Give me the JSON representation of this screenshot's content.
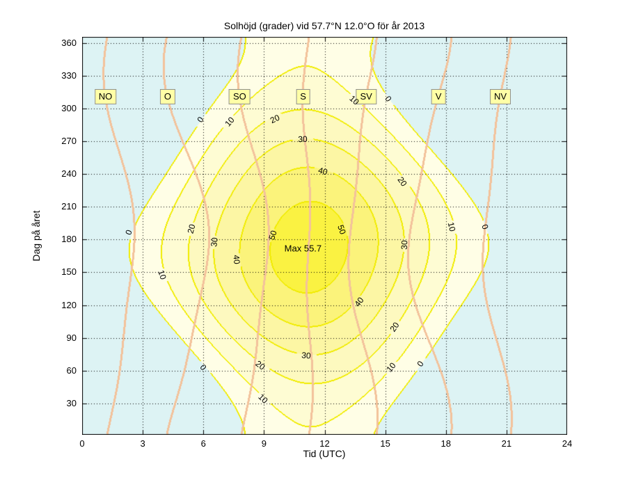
{
  "chart_data": {
    "type": "contour",
    "title": "Solhöjd (grader) vid 57.7°N 12.0°O för år 2013",
    "xlabel": "Tid (UTC)",
    "ylabel": "Dag på året",
    "xlim": [
      0,
      24
    ],
    "ylim": [
      1,
      366
    ],
    "x_ticks": [
      0,
      3,
      6,
      9,
      12,
      15,
      18,
      21,
      24
    ],
    "y_ticks": [
      30,
      60,
      90,
      120,
      150,
      180,
      210,
      240,
      270,
      300,
      330,
      360
    ],
    "grid": "dotted",
    "model": {
      "latitude_deg": 57.7,
      "longitude_deg": 12.0,
      "year": 2013
    },
    "elevation_fill_levels": [
      0,
      10,
      20,
      30,
      40,
      50
    ],
    "max_annotation": {
      "text": "Max 55.7",
      "hour": 10.93,
      "day": 172
    },
    "azimuth_lines": [
      {
        "label": "NO",
        "deg": 45
      },
      {
        "label": "O",
        "deg": 90
      },
      {
        "label": "SO",
        "deg": 135
      },
      {
        "label": "S",
        "deg": 180
      },
      {
        "label": "SV",
        "deg": 225
      },
      {
        "label": "V",
        "deg": 270
      },
      {
        "label": "NV",
        "deg": 315
      }
    ],
    "azimuth_label_day": 311,
    "elevation_labels": [
      [
        0,
        5.85,
        290
      ],
      [
        10,
        7.3,
        288
      ],
      [
        20,
        9.55,
        291
      ],
      [
        30,
        10.92,
        272
      ],
      [
        40,
        11.9,
        243
      ],
      [
        10,
        13.45,
        308
      ],
      [
        0,
        15.15,
        309
      ],
      [
        20,
        15.85,
        233
      ],
      [
        30,
        15.95,
        175
      ],
      [
        10,
        18.3,
        192
      ],
      [
        0,
        19.95,
        192
      ],
      [
        40,
        13.7,
        123
      ],
      [
        20,
        15.45,
        100
      ],
      [
        10,
        15.3,
        63
      ],
      [
        0,
        16.75,
        66
      ],
      [
        30,
        11.1,
        74
      ],
      [
        20,
        8.8,
        65
      ],
      [
        10,
        8.95,
        34
      ],
      [
        0,
        6.0,
        63
      ],
      [
        0,
        2.3,
        187
      ],
      [
        10,
        3.95,
        148
      ],
      [
        20,
        5.4,
        190
      ],
      [
        30,
        6.55,
        178
      ],
      [
        40,
        7.65,
        162
      ],
      [
        50,
        9.45,
        184
      ],
      [
        50,
        12.85,
        189
      ]
    ],
    "colors": {
      "night": "#ddf3f4",
      "bands": [
        "#fffee6",
        "#fefcd3",
        "#fdf9bf",
        "#fcf6a4",
        "#fbf37b",
        "#faf242"
      ],
      "contour_line": "#f1ec00",
      "azimuth_line": "#f3c29b",
      "grid": "#000000",
      "axis": "#000000",
      "direction_box_bg": "#ffffa6",
      "direction_box_border": "#909090"
    }
  }
}
